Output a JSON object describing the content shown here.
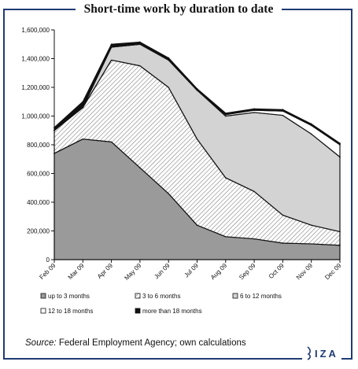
{
  "title": "Short-time work by duration to date",
  "source": {
    "label": "Source:",
    "text": "Federal Employment Agency; own calculations"
  },
  "logo": "IZA",
  "chart_data": {
    "type": "area",
    "stacked": true,
    "title": "Short-time work by duration to date",
    "categories": [
      "Feb 09",
      "Mar 09",
      "Apr 09",
      "May 09",
      "Jun 09",
      "Jul 09",
      "Aug 09",
      "Sep 09",
      "Oct 09",
      "Nov 09",
      "Dec 09"
    ],
    "ylim": [
      0,
      1600000
    ],
    "yticks": [
      "0",
      "200,000",
      "400,000",
      "600,000",
      "800,000",
      "1,000,000",
      "1,200,000",
      "1,400,000",
      "1,600,000"
    ],
    "grid": false,
    "legend_position": "bottom",
    "series": [
      {
        "name": "up to 3 months",
        "values": [
          740000,
          840000,
          820000,
          640000,
          460000,
          240000,
          160000,
          145000,
          115000,
          110000,
          100000
        ],
        "color": "#9a9a9a",
        "pattern": "solid"
      },
      {
        "name": "3 to 6 months",
        "values": [
          160000,
          220000,
          570000,
          710000,
          740000,
          600000,
          410000,
          330000,
          195000,
          130000,
          95000
        ],
        "color": "#ffffff",
        "pattern": "hatch"
      },
      {
        "name": "6 to 12 months",
        "values": [
          0,
          0,
          90000,
          150000,
          190000,
          340000,
          430000,
          550000,
          695000,
          635000,
          520000
        ],
        "color": "#d3d3d3",
        "pattern": "solid"
      },
      {
        "name": "12 to 18 months",
        "values": [
          0,
          0,
          0,
          0,
          0,
          0,
          10000,
          15000,
          30000,
          60000,
          85000
        ],
        "color": "#ffffff",
        "pattern": "solid"
      },
      {
        "name": "more than 18 months",
        "values": [
          20000,
          40000,
          20000,
          15000,
          15000,
          10000,
          10000,
          10000,
          10000,
          10000,
          10000
        ],
        "color": "#111111",
        "pattern": "solid"
      }
    ]
  }
}
